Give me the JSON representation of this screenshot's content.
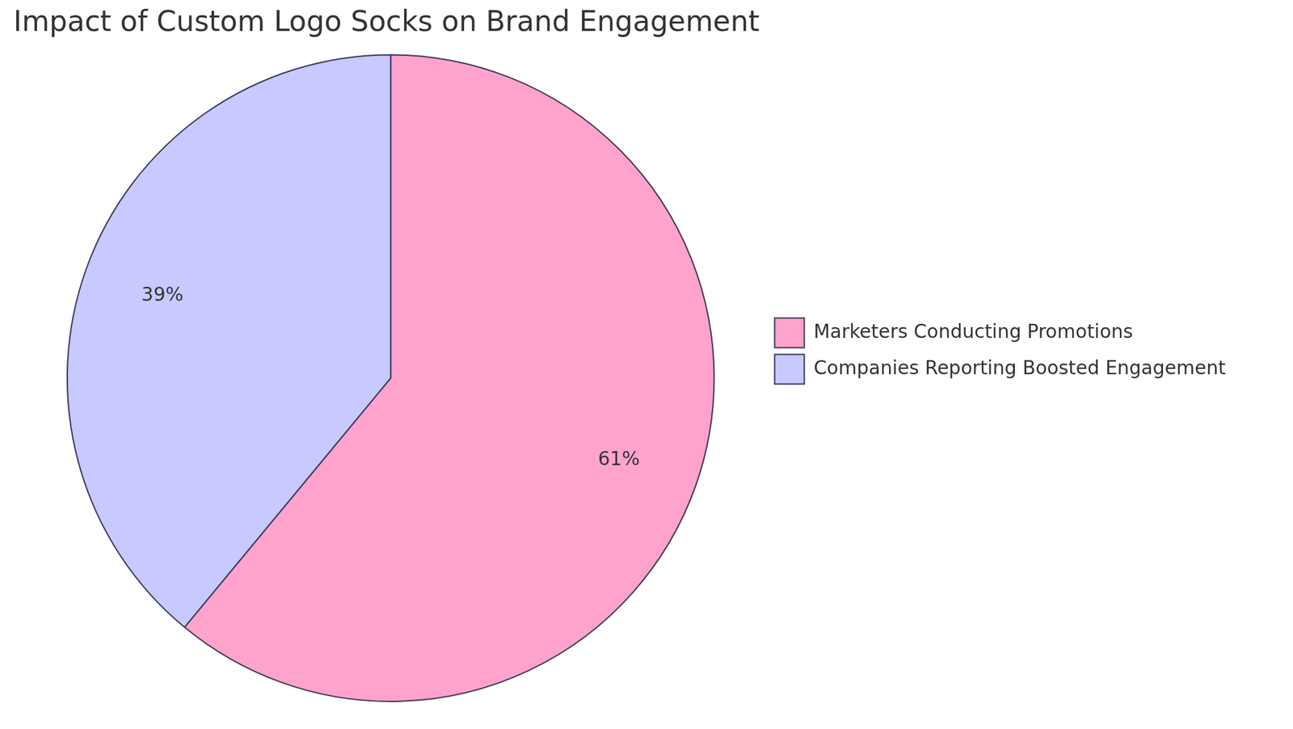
{
  "chart_data": {
    "type": "pie",
    "title": "Impact of Custom Logo Socks on Brand Engagement",
    "categories": [
      "Marketers Conducting Promotions",
      "Companies Reporting Boosted Engagement"
    ],
    "values": [
      61,
      39
    ],
    "value_labels": [
      "61%",
      "39%"
    ],
    "colors": [
      "#ffa3cc",
      "#c7c9ff"
    ],
    "data_labels": true,
    "legend": "right"
  }
}
